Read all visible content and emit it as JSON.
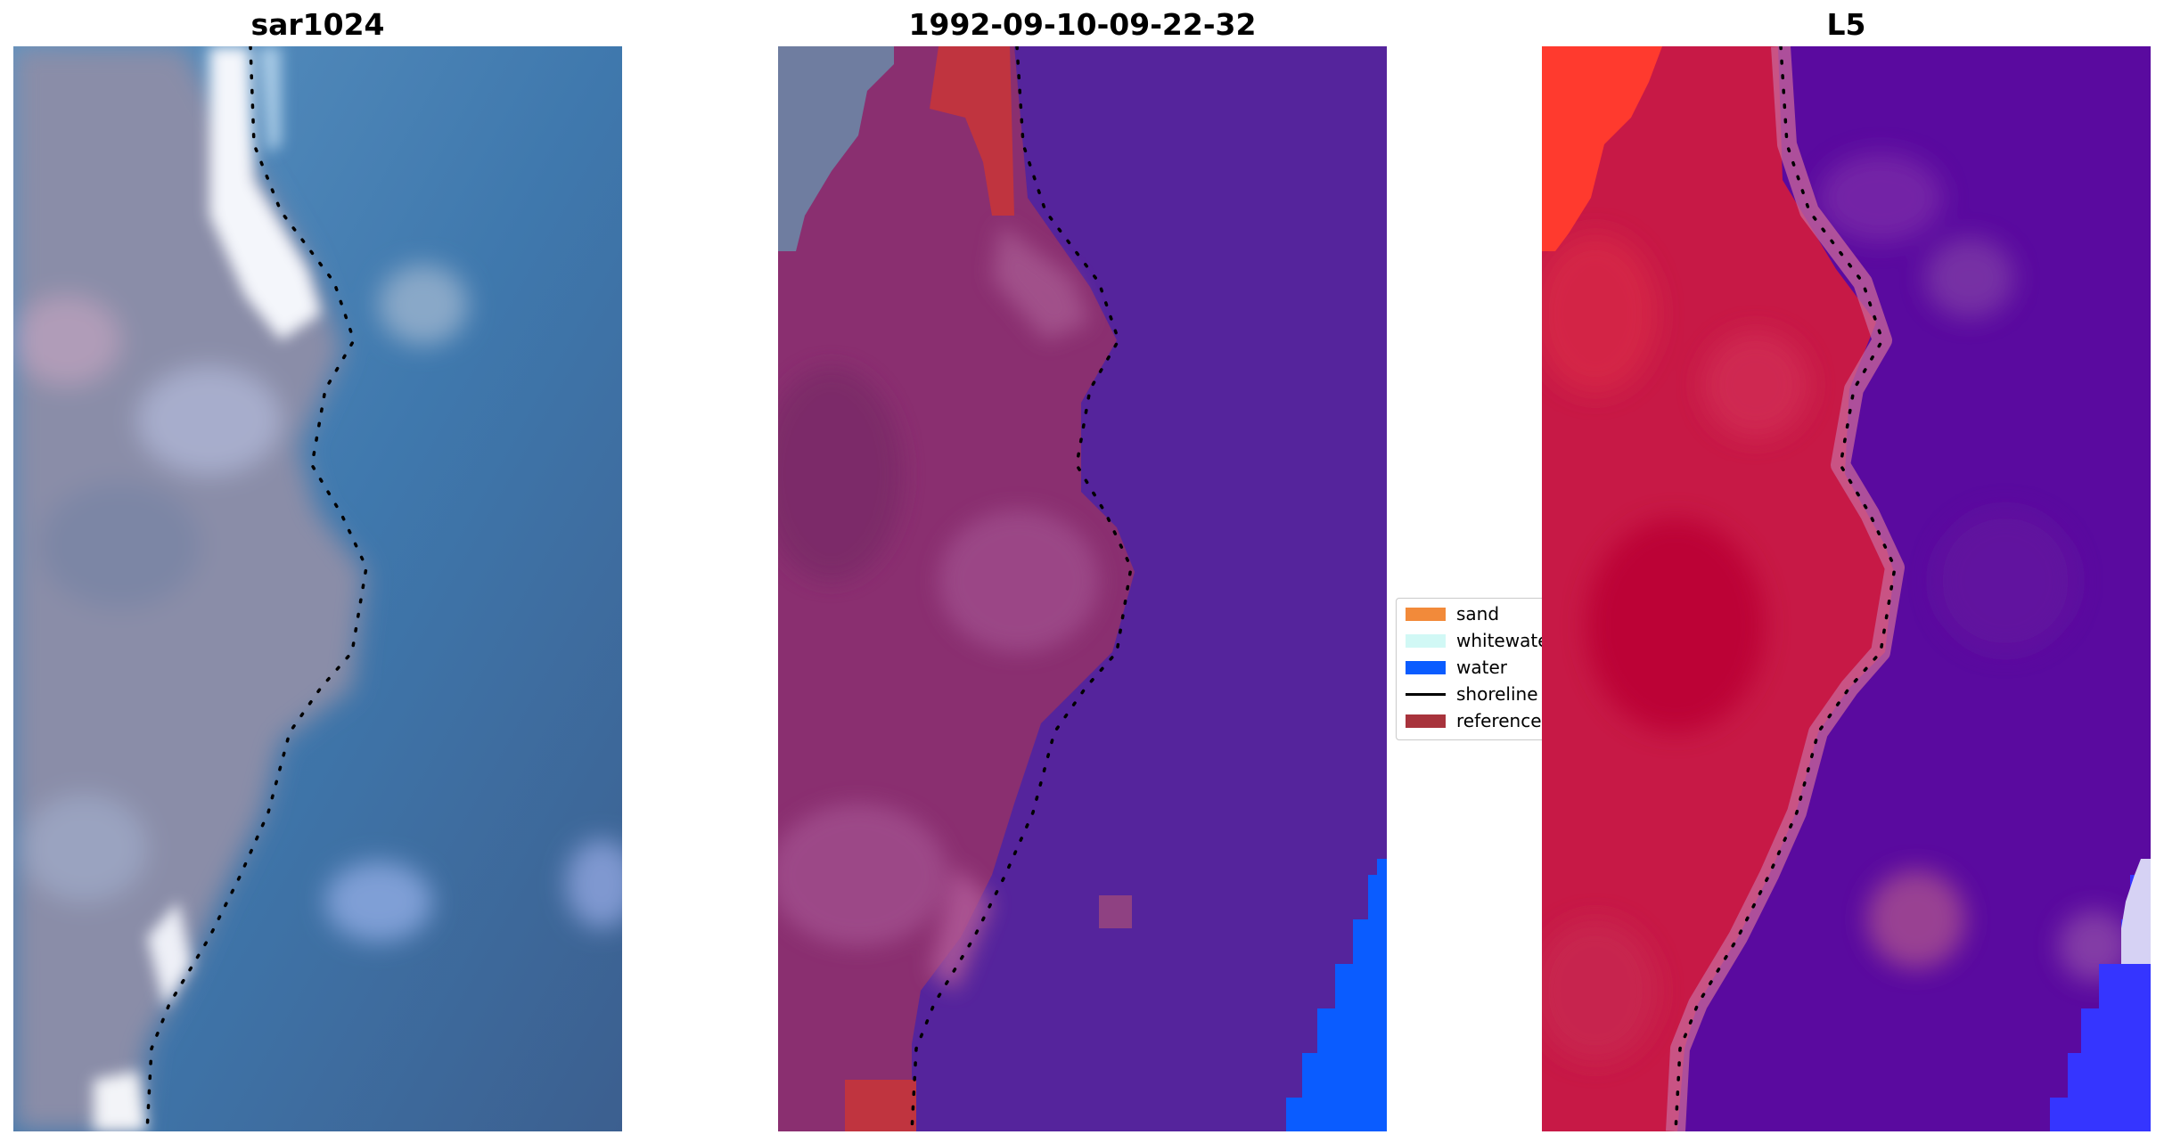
{
  "panels": [
    {
      "title": "sar1024",
      "image": "rgb satellite composite with dotted shoreline"
    },
    {
      "title": "1992-09-10-09-22-32",
      "image": "classified image with dotted shoreline"
    },
    {
      "title": "L5",
      "image": "class probability image with dotted shoreline"
    }
  ],
  "legend": [
    {
      "label": "sand",
      "color": "#f28a3a",
      "kind": "patch"
    },
    {
      "label": "whitewater",
      "color": "#d1f8f5",
      "kind": "patch"
    },
    {
      "label": "water",
      "color": "#0a5cff",
      "kind": "patch"
    },
    {
      "label": "shoreline",
      "color": "#000000",
      "kind": "line"
    },
    {
      "label": "reference",
      "color": "#a8333c",
      "kind": "patch"
    }
  ]
}
